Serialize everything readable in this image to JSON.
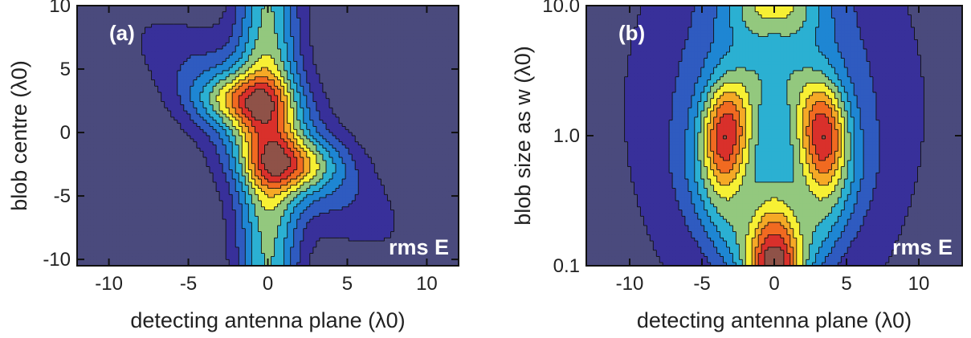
{
  "colors": {
    "levels": [
      "#4a4a7d",
      "#38309a",
      "#2f5bc0",
      "#1e86d3",
      "#2bb0d2",
      "#93c87e",
      "#f7f034",
      "#f5a926",
      "#f16a21",
      "#d9302b",
      "#8f5248"
    ],
    "contour_line": "#111111",
    "frame": "#111111"
  },
  "chart_data": [
    {
      "type": "heatmap",
      "panel_label": "(a)",
      "annotation": "rms E",
      "xlabel": "detecting antenna plane (λ0)",
      "ylabel": "blob centre (λ0)",
      "xlim": [
        -12,
        12
      ],
      "ylim": [
        -10.5,
        10
      ],
      "yscale": "linear",
      "xticks": [
        -10,
        -5,
        0,
        5,
        10
      ],
      "xtick_labels": [
        "-10",
        "-5",
        "0",
        "5",
        "10"
      ],
      "yticks": [
        -10,
        -5,
        0,
        5,
        10
      ],
      "ytick_labels": [
        "-10",
        "-5",
        "0",
        "5",
        "10"
      ],
      "levels": 11,
      "model": "field",
      "description_values": {
        "band_centres_x": [
          0
        ],
        "blob_lobes": [
          {
            "x": -1.5,
            "y": 2.5
          },
          {
            "x": 1.5,
            "y": -2.5
          }
        ]
      }
    },
    {
      "type": "heatmap",
      "panel_label": "(b)",
      "annotation": "rms E",
      "xlabel": "detecting antenna plane (λ0)",
      "ylabel": "blob size as w (λ0)",
      "xlim": [
        -13,
        13
      ],
      "ylim": [
        0.1,
        10
      ],
      "yscale": "log",
      "xticks": [
        -10,
        -5,
        0,
        5,
        10
      ],
      "xtick_labels": [
        "-10",
        "-5",
        "0",
        "5",
        "10"
      ],
      "yticks": [
        0.1,
        1,
        10
      ],
      "ytick_labels": [
        "0.1",
        "1.0",
        "10.0"
      ],
      "levels": 11,
      "model": "size",
      "description_values": {
        "peak_arms": [
          {
            "x": -3.5,
            "w": 1.0
          },
          {
            "x": 3.5,
            "w": 1.0
          }
        ],
        "bottom_peak": {
          "x": 0,
          "w": 0.1
        }
      }
    }
  ]
}
